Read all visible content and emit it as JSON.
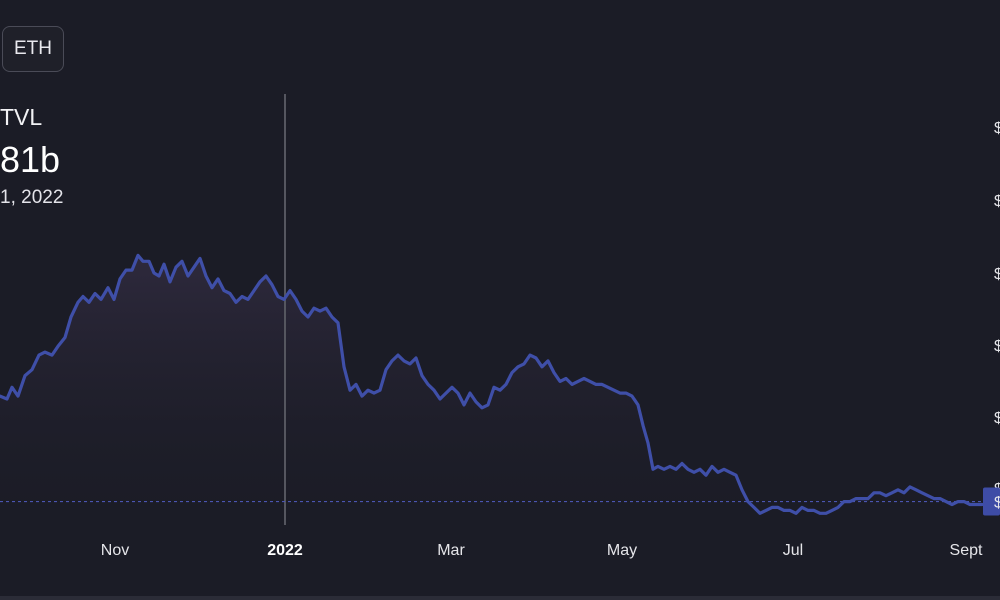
{
  "header": {
    "chain_label": "ETH",
    "tvl_label": "TVL",
    "tvl_value": "81b",
    "tvl_date": "1, 2022"
  },
  "colors": {
    "background": "#1b1c26",
    "line": "#3f4fa8",
    "fill_top": "#2f2a3e",
    "crosshair": "#55565f",
    "baseline": "#4a55b0",
    "price_tag": "#3e4ca6"
  },
  "chart_data": {
    "type": "area",
    "title": "",
    "xlabel": "",
    "ylabel": "",
    "x_ticks": [
      {
        "label": "Nov",
        "t": 0.115,
        "bold": false
      },
      {
        "label": "2022",
        "t": 0.285,
        "bold": true
      },
      {
        "label": "Mar",
        "t": 0.451,
        "bold": false
      },
      {
        "label": "May",
        "t": 0.622,
        "bold": false
      },
      {
        "label": "Jul",
        "t": 0.793,
        "bold": false
      },
      {
        "label": "Sept",
        "t": 0.966,
        "bold": false
      }
    ],
    "y_tick_labels": [
      "$",
      "$",
      "$",
      "$",
      "$",
      "$"
    ],
    "y_range": [
      0,
      100
    ],
    "crosshair_t": 0.285,
    "baseline_value": 8,
    "baseline_tag": "$",
    "series": [
      {
        "values": [
          [
            0.0,
            44
          ],
          [
            0.007,
            43
          ],
          [
            0.012,
            47
          ],
          [
            0.018,
            44
          ],
          [
            0.025,
            51
          ],
          [
            0.032,
            53
          ],
          [
            0.039,
            58
          ],
          [
            0.045,
            59
          ],
          [
            0.052,
            58
          ],
          [
            0.058,
            61
          ],
          [
            0.065,
            64
          ],
          [
            0.071,
            71
          ],
          [
            0.078,
            76
          ],
          [
            0.083,
            78
          ],
          [
            0.089,
            76
          ],
          [
            0.095,
            79
          ],
          [
            0.101,
            77
          ],
          [
            0.108,
            81
          ],
          [
            0.114,
            77
          ],
          [
            0.12,
            84
          ],
          [
            0.126,
            87
          ],
          [
            0.132,
            87
          ],
          [
            0.138,
            92
          ],
          [
            0.143,
            90
          ],
          [
            0.149,
            90
          ],
          [
            0.154,
            86
          ],
          [
            0.159,
            85
          ],
          [
            0.164,
            89
          ],
          [
            0.17,
            83
          ],
          [
            0.176,
            88
          ],
          [
            0.182,
            90
          ],
          [
            0.188,
            85
          ],
          [
            0.194,
            88
          ],
          [
            0.2,
            91
          ],
          [
            0.206,
            85
          ],
          [
            0.212,
            81
          ],
          [
            0.218,
            84
          ],
          [
            0.224,
            80
          ],
          [
            0.23,
            79
          ],
          [
            0.236,
            76
          ],
          [
            0.242,
            78
          ],
          [
            0.248,
            77
          ],
          [
            0.254,
            80
          ],
          [
            0.26,
            83
          ],
          [
            0.266,
            85
          ],
          [
            0.272,
            82
          ],
          [
            0.278,
            78
          ],
          [
            0.284,
            77
          ],
          [
            0.29,
            80
          ],
          [
            0.296,
            77
          ],
          [
            0.302,
            73
          ],
          [
            0.308,
            71
          ],
          [
            0.314,
            74
          ],
          [
            0.32,
            73
          ],
          [
            0.326,
            74
          ],
          [
            0.332,
            71
          ],
          [
            0.338,
            69
          ],
          [
            0.344,
            54
          ],
          [
            0.35,
            46
          ],
          [
            0.356,
            48
          ],
          [
            0.362,
            44
          ],
          [
            0.368,
            46
          ],
          [
            0.374,
            45
          ],
          [
            0.38,
            46
          ],
          [
            0.386,
            53
          ],
          [
            0.392,
            56
          ],
          [
            0.398,
            58
          ],
          [
            0.404,
            56
          ],
          [
            0.41,
            55
          ],
          [
            0.416,
            57
          ],
          [
            0.422,
            51
          ],
          [
            0.428,
            48
          ],
          [
            0.434,
            46
          ],
          [
            0.44,
            43
          ],
          [
            0.446,
            45
          ],
          [
            0.452,
            47
          ],
          [
            0.458,
            45
          ],
          [
            0.464,
            41
          ],
          [
            0.47,
            45
          ],
          [
            0.476,
            42
          ],
          [
            0.482,
            40
          ],
          [
            0.488,
            41
          ],
          [
            0.494,
            47
          ],
          [
            0.5,
            46
          ],
          [
            0.506,
            48
          ],
          [
            0.512,
            52
          ],
          [
            0.518,
            54
          ],
          [
            0.524,
            55
          ],
          [
            0.53,
            58
          ],
          [
            0.536,
            57
          ],
          [
            0.542,
            54
          ],
          [
            0.548,
            56
          ],
          [
            0.554,
            52
          ],
          [
            0.56,
            49
          ],
          [
            0.566,
            50
          ],
          [
            0.572,
            48
          ],
          [
            0.578,
            49
          ],
          [
            0.584,
            50
          ],
          [
            0.59,
            49
          ],
          [
            0.596,
            48
          ],
          [
            0.602,
            48
          ],
          [
            0.608,
            47
          ],
          [
            0.614,
            46
          ],
          [
            0.62,
            45
          ],
          [
            0.626,
            45
          ],
          [
            0.632,
            44
          ],
          [
            0.638,
            41
          ],
          [
            0.643,
            34
          ],
          [
            0.648,
            28
          ],
          [
            0.653,
            19
          ],
          [
            0.658,
            20
          ],
          [
            0.664,
            19
          ],
          [
            0.67,
            20
          ],
          [
            0.676,
            19
          ],
          [
            0.682,
            21
          ],
          [
            0.688,
            19
          ],
          [
            0.694,
            18
          ],
          [
            0.7,
            19
          ],
          [
            0.706,
            17
          ],
          [
            0.712,
            20
          ],
          [
            0.718,
            18
          ],
          [
            0.724,
            19
          ],
          [
            0.73,
            18
          ],
          [
            0.736,
            17
          ],
          [
            0.742,
            12
          ],
          [
            0.748,
            8
          ],
          [
            0.754,
            6
          ],
          [
            0.76,
            4
          ],
          [
            0.766,
            5
          ],
          [
            0.772,
            6
          ],
          [
            0.778,
            6
          ],
          [
            0.784,
            5
          ],
          [
            0.79,
            5
          ],
          [
            0.796,
            4
          ],
          [
            0.802,
            6
          ],
          [
            0.808,
            5
          ],
          [
            0.814,
            5
          ],
          [
            0.82,
            4
          ],
          [
            0.826,
            4
          ],
          [
            0.832,
            5
          ],
          [
            0.838,
            6
          ],
          [
            0.844,
            8
          ],
          [
            0.85,
            8
          ],
          [
            0.856,
            9
          ],
          [
            0.862,
            9
          ],
          [
            0.868,
            9
          ],
          [
            0.874,
            11
          ],
          [
            0.88,
            11
          ],
          [
            0.886,
            10
          ],
          [
            0.892,
            11
          ],
          [
            0.898,
            12
          ],
          [
            0.904,
            11
          ],
          [
            0.91,
            13
          ],
          [
            0.916,
            12
          ],
          [
            0.922,
            11
          ],
          [
            0.928,
            10
          ],
          [
            0.934,
            9
          ],
          [
            0.94,
            9
          ],
          [
            0.946,
            8
          ],
          [
            0.952,
            7
          ],
          [
            0.958,
            8
          ],
          [
            0.964,
            8
          ],
          [
            0.97,
            7
          ],
          [
            0.976,
            7
          ],
          [
            0.982,
            7
          ]
        ]
      }
    ]
  }
}
